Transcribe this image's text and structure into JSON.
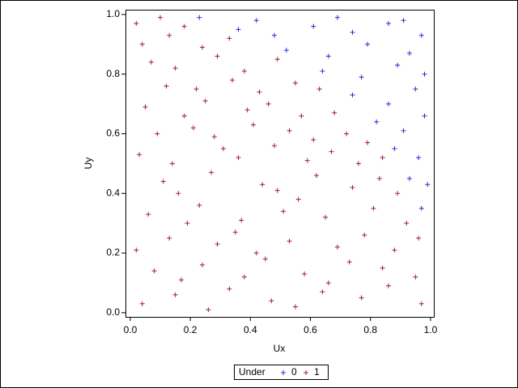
{
  "chart_data": {
    "type": "scatter",
    "xlabel": "Ux",
    "ylabel": "Uy",
    "xlim": [
      -0.016,
      1.011
    ],
    "ylim": [
      -0.014,
      1.016
    ],
    "xticks": [
      {
        "value": 0,
        "label": "0.0"
      },
      0.2,
      0.4,
      0.6,
      0.8,
      {
        "value": 1,
        "label": "1.0"
      }
    ],
    "yticks": [
      {
        "value": 0,
        "label": "0.0"
      },
      0.2,
      0.4,
      0.6,
      0.8,
      {
        "value": 1,
        "label": "1.0"
      }
    ],
    "legend_title": "Under",
    "legend": "bottom",
    "series": [
      {
        "name": "0",
        "color": "#2b2bd6",
        "x": [
          0.97,
          0.93,
          0.99,
          0.88,
          0.96,
          0.82,
          0.91,
          0.98,
          0.74,
          0.86,
          0.95,
          0.64,
          0.77,
          0.89,
          0.98,
          0.52,
          0.66,
          0.79,
          0.93,
          0.36,
          0.48,
          0.61,
          0.74,
          0.86,
          0.97,
          0.23,
          0.42,
          0.69,
          0.91
        ],
        "values": [
          0.35,
          0.45,
          0.43,
          0.55,
          0.52,
          0.64,
          0.61,
          0.66,
          0.73,
          0.7,
          0.75,
          0.81,
          0.79,
          0.83,
          0.8,
          0.88,
          0.86,
          0.9,
          0.87,
          0.95,
          0.93,
          0.96,
          0.94,
          0.97,
          0.93,
          0.99,
          0.98,
          0.99,
          0.98
        ]
      },
      {
        "name": "1",
        "color": "#a21f35",
        "x": [
          0.04,
          0.15,
          0.26,
          0.33,
          0.47,
          0.55,
          0.64,
          0.77,
          0.86,
          0.97,
          0.08,
          0.17,
          0.24,
          0.38,
          0.45,
          0.58,
          0.66,
          0.73,
          0.84,
          0.95,
          0.02,
          0.13,
          0.29,
          0.35,
          0.42,
          0.53,
          0.69,
          0.78,
          0.88,
          0.96,
          0.06,
          0.19,
          0.23,
          0.37,
          0.51,
          0.56,
          0.65,
          0.81,
          0.92,
          0.11,
          0.16,
          0.27,
          0.44,
          0.49,
          0.62,
          0.74,
          0.83,
          0.89,
          0.03,
          0.14,
          0.31,
          0.36,
          0.48,
          0.59,
          0.67,
          0.76,
          0.84,
          0.09,
          0.21,
          0.28,
          0.41,
          0.53,
          0.61,
          0.72,
          0.79,
          0.05,
          0.18,
          0.25,
          0.39,
          0.46,
          0.57,
          0.68,
          0.12,
          0.22,
          0.34,
          0.43,
          0.55,
          0.63,
          0.07,
          0.15,
          0.29,
          0.38,
          0.49,
          0.04,
          0.13,
          0.24,
          0.33,
          0.02,
          0.1,
          0.18
        ],
        "values": [
          0.03,
          0.06,
          0.01,
          0.08,
          0.04,
          0.02,
          0.07,
          0.05,
          0.09,
          0.03,
          0.14,
          0.11,
          0.16,
          0.12,
          0.18,
          0.13,
          0.1,
          0.17,
          0.15,
          0.12,
          0.21,
          0.25,
          0.23,
          0.27,
          0.2,
          0.24,
          0.22,
          0.26,
          0.21,
          0.25,
          0.33,
          0.3,
          0.36,
          0.31,
          0.34,
          0.38,
          0.32,
          0.35,
          0.3,
          0.44,
          0.4,
          0.47,
          0.43,
          0.41,
          0.46,
          0.42,
          0.45,
          0.4,
          0.53,
          0.5,
          0.55,
          0.52,
          0.56,
          0.51,
          0.54,
          0.5,
          0.52,
          0.6,
          0.62,
          0.59,
          0.63,
          0.61,
          0.58,
          0.6,
          0.57,
          0.69,
          0.66,
          0.71,
          0.68,
          0.7,
          0.66,
          0.67,
          0.76,
          0.75,
          0.78,
          0.74,
          0.77,
          0.75,
          0.84,
          0.82,
          0.86,
          0.81,
          0.85,
          0.9,
          0.93,
          0.89,
          0.92,
          0.97,
          0.99,
          0.96
        ]
      }
    ]
  }
}
